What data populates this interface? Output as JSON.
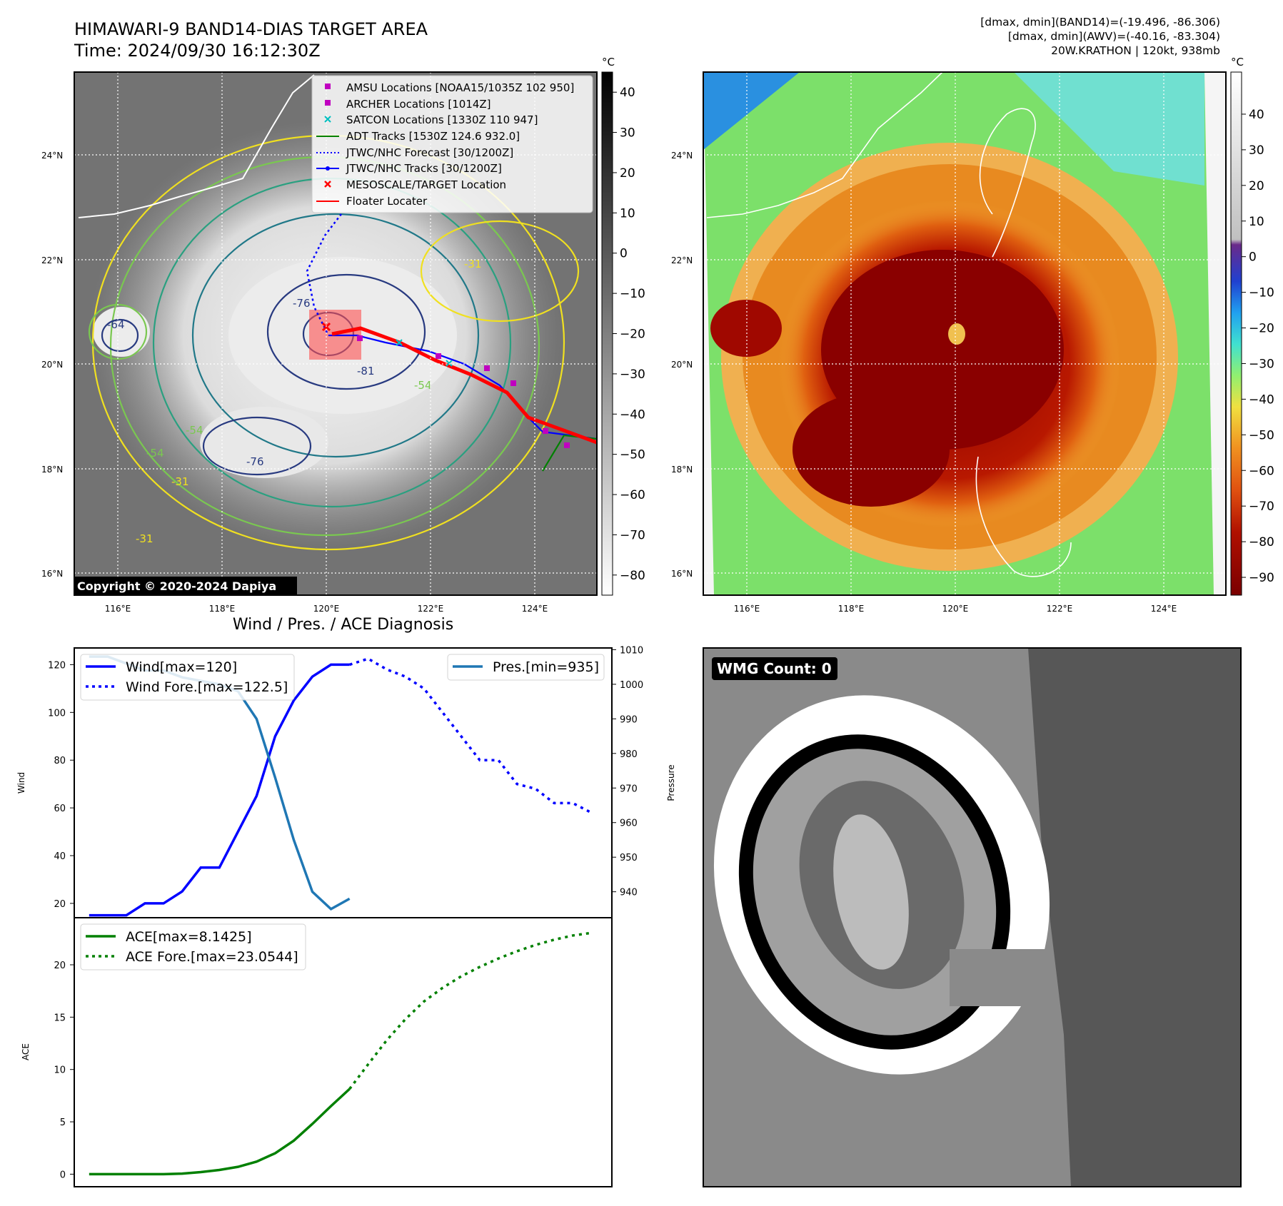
{
  "header": {
    "title_line1": "HIMAWARI-9 BAND14-DIAS TARGET AREA",
    "title_line2": "Time: 2024/09/30 16:12:30Z",
    "right_line1": "[dmax, dmin](BAND14)=(-19.496, -86.306)",
    "right_line2": "[dmax, dmin](AWV)=(-40.16, -83.304)",
    "right_line3": "20W.KRATHON | 120kt, 938mb"
  },
  "map": {
    "lat_labels": [
      "24°N",
      "22°N",
      "20°N",
      "18°N",
      "16°N"
    ],
    "lon_labels": [
      "116°E",
      "118°E",
      "120°E",
      "122°E",
      "124°E"
    ],
    "copyright": "Copyright © 2020-2024 Dapiya",
    "contour_labels": [
      "-76",
      "-81",
      "-76",
      "-64",
      "-54",
      "-54",
      "-31",
      "-31",
      "-31",
      "-54"
    ],
    "legend": [
      {
        "label": "AMSU Locations [NOAA15/1035Z 102 950]",
        "marker": "square",
        "color": "#c000c0"
      },
      {
        "label": "ARCHER Locations [1014Z]",
        "marker": "square",
        "color": "#c000c0"
      },
      {
        "label": "SATCON Locations [1330Z 110 947]",
        "marker": "x",
        "color": "#00bfbf"
      },
      {
        "label": "ADT Tracks [1530Z 124.6 932.0]",
        "marker": "line",
        "color": "#008000"
      },
      {
        "label": "JTWC/NHC Forecast [30/1200Z]",
        "marker": "dotted",
        "color": "#0000ff"
      },
      {
        "label": "JTWC/NHC Tracks [30/1200Z]",
        "marker": "dotline",
        "color": "#0000ff"
      },
      {
        "label": "MESOSCALE/TARGET Location",
        "marker": "x",
        "color": "#ff0000"
      },
      {
        "label": "Floater Locater",
        "marker": "line",
        "color": "#ff0000"
      }
    ]
  },
  "colorbar_gray": {
    "unit": "°C",
    "ticks": [
      "40",
      "30",
      "20",
      "10",
      "0",
      "−10",
      "−20",
      "−30",
      "−40",
      "−50",
      "−60",
      "−70",
      "−80"
    ]
  },
  "colorbar_color": {
    "unit": "°C",
    "ticks": [
      "40",
      "30",
      "20",
      "10",
      "0",
      "−10",
      "−20",
      "−30",
      "−40",
      "−50",
      "−60",
      "−70",
      "−80",
      "−90"
    ]
  },
  "wind_title": "Wind / Pres. / ACE Diagnosis",
  "wmg_label": "WMG Count: 0",
  "chart_data": [
    {
      "type": "line",
      "title": "Wind / Pres. / ACE Diagnosis",
      "ylabel": "Wind",
      "ylabel_right": "Pressure",
      "ylim": [
        14,
        127
      ],
      "ylim_right": [
        932.5,
        1010.5
      ],
      "yticks": [
        20,
        40,
        60,
        80,
        100,
        120
      ],
      "yticks_right": [
        940,
        950,
        960,
        970,
        980,
        990,
        1000,
        1010
      ],
      "legend_left": [
        "Wind[max=120]",
        "Wind Fore.[max=122.5]"
      ],
      "legend_right": [
        "Pres.[min=935]"
      ],
      "series": [
        {
          "name": "Wind[max=120]",
          "style": "solid",
          "color": "#0000ff",
          "axis": "left",
          "x": [
            0,
            1,
            2,
            3,
            4,
            5,
            6,
            7,
            8,
            9,
            10,
            11,
            12,
            13,
            14
          ],
          "values": [
            15,
            15,
            15,
            20,
            20,
            25,
            35,
            35,
            50,
            65,
            90,
            105,
            115,
            120,
            120
          ]
        },
        {
          "name": "Wind Fore.[max=122.5]",
          "style": "dotted",
          "color": "#0000ff",
          "axis": "left",
          "x": [
            14,
            15,
            16,
            17,
            18,
            19,
            20,
            21,
            22,
            23,
            24,
            25,
            26,
            27
          ],
          "values": [
            120,
            122.5,
            118,
            115,
            110,
            100,
            90,
            80,
            80,
            70,
            68,
            62,
            62,
            58
          ]
        },
        {
          "name": "Pres.[min=935]",
          "style": "solid",
          "color": "#1f77b4",
          "axis": "right",
          "x": [
            0,
            1,
            2,
            3,
            4,
            5,
            6,
            7,
            8,
            9,
            10,
            11,
            12,
            13,
            14
          ],
          "values": [
            1008,
            1008,
            1006,
            1004,
            1004,
            1002,
            1001,
            1000,
            998,
            990,
            973,
            955,
            940,
            935,
            938
          ]
        }
      ]
    },
    {
      "type": "line",
      "ylabel": "ACE",
      "ylim": [
        -1.2,
        24.5
      ],
      "yticks": [
        0,
        5,
        10,
        15,
        20
      ],
      "legend": [
        "ACE[max=8.1425]",
        "ACE Fore.[max=23.0544]"
      ],
      "series": [
        {
          "name": "ACE[max=8.1425]",
          "style": "solid",
          "color": "#008000",
          "x": [
            0,
            1,
            2,
            3,
            4,
            5,
            6,
            7,
            8,
            9,
            10,
            11,
            12,
            13,
            14
          ],
          "values": [
            0,
            0,
            0,
            0,
            0,
            0.05,
            0.2,
            0.4,
            0.7,
            1.2,
            2.0,
            3.2,
            4.8,
            6.5,
            8.14
          ]
        },
        {
          "name": "ACE Fore.[max=23.0544]",
          "style": "dotted",
          "color": "#008000",
          "x": [
            14,
            15,
            16,
            17,
            18,
            19,
            20,
            21,
            22,
            23,
            24,
            25,
            26,
            27
          ],
          "values": [
            8.14,
            10.5,
            12.8,
            14.8,
            16.5,
            17.8,
            18.9,
            19.8,
            20.6,
            21.3,
            21.9,
            22.4,
            22.8,
            23.05
          ]
        }
      ]
    }
  ]
}
